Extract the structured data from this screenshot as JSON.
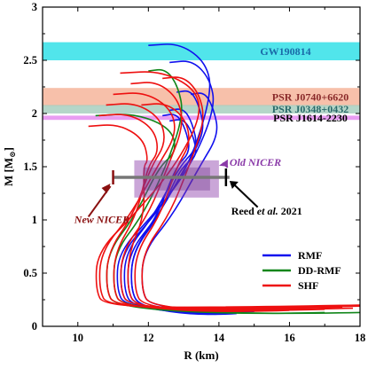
{
  "chart_data": {
    "type": "line",
    "xlabel": "R (km)",
    "ylabel_main": "M [M",
    "ylabel_sub": "⊙",
    "ylabel_end": "]",
    "xlim": [
      9,
      18
    ],
    "ylim": [
      0,
      3
    ],
    "xticks": [
      10,
      12,
      14,
      16,
      18
    ],
    "xtick_labels": [
      "10",
      "12",
      "14",
      "16",
      "18"
    ],
    "yticks": [
      0,
      0.5,
      1,
      1.5,
      2,
      2.5,
      3
    ],
    "ytick_labels": [
      "0",
      "0.5",
      "1",
      "1.5",
      "2",
      "2.5",
      "3"
    ],
    "bands": [
      {
        "label": "GW190814",
        "ymin": 2.5,
        "ymax": 2.67,
        "color": "#33e0e8"
      },
      {
        "label": "PSR J0740+6620",
        "ymin": 2.07,
        "ymax": 2.24,
        "color": "#f6b59b"
      },
      {
        "label": "PSR J0348+0432",
        "ymin": 2.0,
        "ymax": 2.08,
        "color": "#a8cfc0"
      },
      {
        "label": "PSR J1614-2230",
        "ymin": 1.94,
        "ymax": 1.98,
        "color": "#e58cf0"
      }
    ],
    "annotations": [
      {
        "label": "Old NICER",
        "x": 14.3,
        "y": 1.51
      },
      {
        "label": "New NICER",
        "x": 9.9,
        "y": 0.97
      },
      {
        "label_main": "Reed ",
        "label_italic": "et al.",
        "label_end": " 2021",
        "x": 14.35,
        "y": 1.05
      }
    ],
    "constraints": {
      "new_nicer": {
        "r": [
          11.0,
          14.3
        ],
        "m": 1.4
      },
      "old_nicer": {
        "r": [
          11.6,
          14.0
        ],
        "m": [
          1.21,
          1.56
        ]
      },
      "reed": {
        "r": 14.2,
        "m": 1.4
      }
    },
    "legend_position": "bottom-right",
    "series": [
      {
        "name": "RMF",
        "color": "#1010ee",
        "curves": [
          {
            "R_min": 11.2,
            "M_max": 2.66,
            "R_at_max": 12.0,
            "R_top": 13.8,
            "R_tail": 17.0,
            "M_tail": 0.18
          },
          {
            "R_min": 11.1,
            "M_max": 2.5,
            "R_at_max": 12.6,
            "R_top": 13.9,
            "R_tail": 16.0,
            "M_tail": 0.16
          },
          {
            "R_min": 11.4,
            "M_max": 2.22,
            "R_at_max": 12.8,
            "R_top": 13.6,
            "R_tail": 15.0,
            "M_tail": 0.14
          },
          {
            "R_min": 11.3,
            "M_max": 2.05,
            "R_at_max": 12.6,
            "R_top": 13.4,
            "R_tail": 14.6,
            "M_tail": 0.13
          },
          {
            "R_min": 11.5,
            "M_max": 1.95,
            "R_at_max": 12.6,
            "R_top": 13.4,
            "R_tail": 14.5,
            "M_tail": 0.12
          },
          {
            "R_min": 11.8,
            "M_max": 2.2,
            "R_at_max": 13.2,
            "R_top": 14.0,
            "R_tail": 16.6,
            "M_tail": 0.16
          },
          {
            "R_min": 11.5,
            "M_max": 2.0,
            "R_at_max": 12.4,
            "R_top": 13.2,
            "R_tail": 14.2,
            "M_tail": 0.12
          }
        ]
      },
      {
        "name": "DD-RMF",
        "color": "#11861a",
        "curves": [
          {
            "R_min": 11.0,
            "M_max": 2.42,
            "R_at_max": 12.0,
            "R_top": 13.0,
            "R_tail": 18.0,
            "M_tail": 0.13
          },
          {
            "R_min": 10.8,
            "M_max": 2.0,
            "R_at_max": 10.5,
            "R_top": 12.8,
            "R_tail": 17.0,
            "M_tail": 0.13
          }
        ]
      },
      {
        "name": "SHF",
        "color": "#ee1010",
        "curves": [
          {
            "R_min": 10.5,
            "M_max": 2.4,
            "R_at_max": 11.2,
            "R_top": 13.5,
            "R_tail": 18.0,
            "M_tail": 0.2
          },
          {
            "R_min": 10.6,
            "M_max": 2.2,
            "R_at_max": 11.0,
            "R_top": 12.8,
            "R_tail": 18.0,
            "M_tail": 0.19
          },
          {
            "R_min": 10.8,
            "M_max": 2.1,
            "R_at_max": 10.8,
            "R_top": 12.5,
            "R_tail": 17.5,
            "M_tail": 0.18
          },
          {
            "R_min": 11.0,
            "M_max": 2.0,
            "R_at_max": 10.6,
            "R_top": 12.3,
            "R_tail": 16.5,
            "M_tail": 0.16
          },
          {
            "R_min": 11.2,
            "M_max": 2.3,
            "R_at_max": 11.5,
            "R_top": 13.0,
            "R_tail": 17.8,
            "M_tail": 0.17
          },
          {
            "R_min": 11.4,
            "M_max": 1.9,
            "R_at_max": 10.3,
            "R_top": 12.0,
            "R_tail": 15.5,
            "M_tail": 0.15
          },
          {
            "R_min": 11.6,
            "M_max": 2.1,
            "R_at_max": 11.8,
            "R_top": 13.2,
            "R_tail": 16.0,
            "M_tail": 0.15
          },
          {
            "R_min": 11.8,
            "M_max": 2.35,
            "R_at_max": 12.4,
            "R_top": 13.6,
            "R_tail": 17.0,
            "M_tail": 0.16
          }
        ]
      }
    ]
  }
}
